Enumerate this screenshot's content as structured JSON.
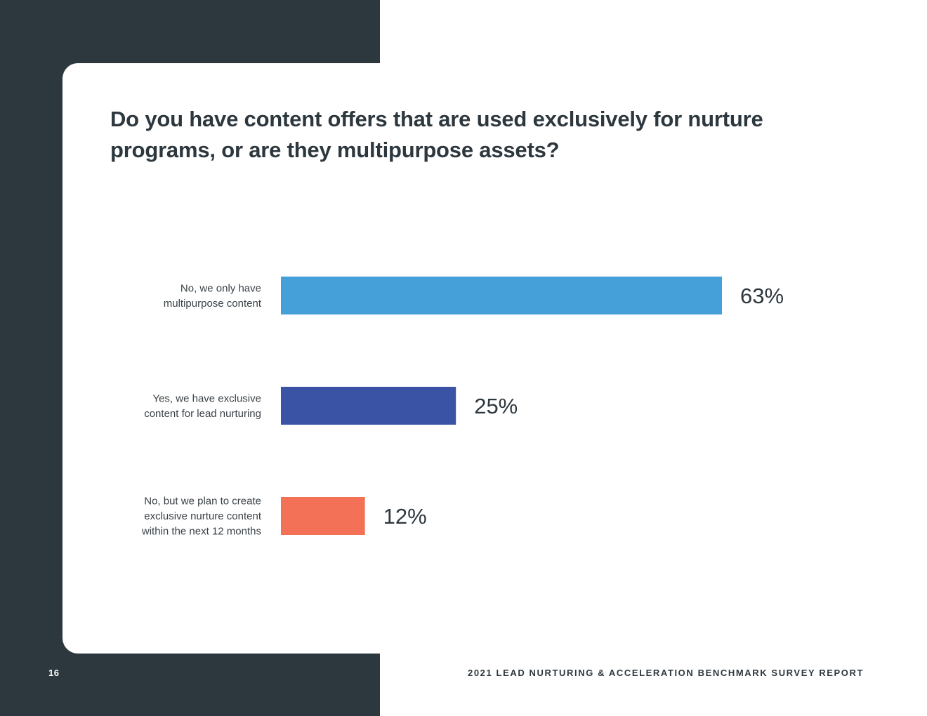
{
  "page": {
    "title": "Do you have content offers that are used exclusively for nurture programs, or are they multipurpose assets?",
    "page_number": "16",
    "report_title": "2021 LEAD NURTURING & ACCELERATION BENCHMARK SURVEY REPORT"
  },
  "colors": {
    "dark_panel": "#2d373e",
    "text": "#2d373e",
    "label_text": "#3a4248"
  },
  "chart_data": {
    "type": "bar",
    "orientation": "horizontal",
    "title": "Do you have content offers that are used exclusively for nurture programs, or are they multipurpose assets?",
    "categories": [
      [
        "No, we only have",
        "multipurpose content"
      ],
      [
        "Yes, we have exclusive",
        "content for lead nurturing"
      ],
      [
        "No, but we plan to create",
        "exclusive nurture content",
        "within the next 12 months"
      ]
    ],
    "values": [
      63,
      25,
      12
    ],
    "value_labels": [
      "63%",
      "25%",
      "12%"
    ],
    "unit": "%",
    "bar_colors": [
      "#459fd8",
      "#3a53a4",
      "#f27157"
    ],
    "xlim": [
      0,
      63
    ],
    "grid": false,
    "legend": "none"
  }
}
